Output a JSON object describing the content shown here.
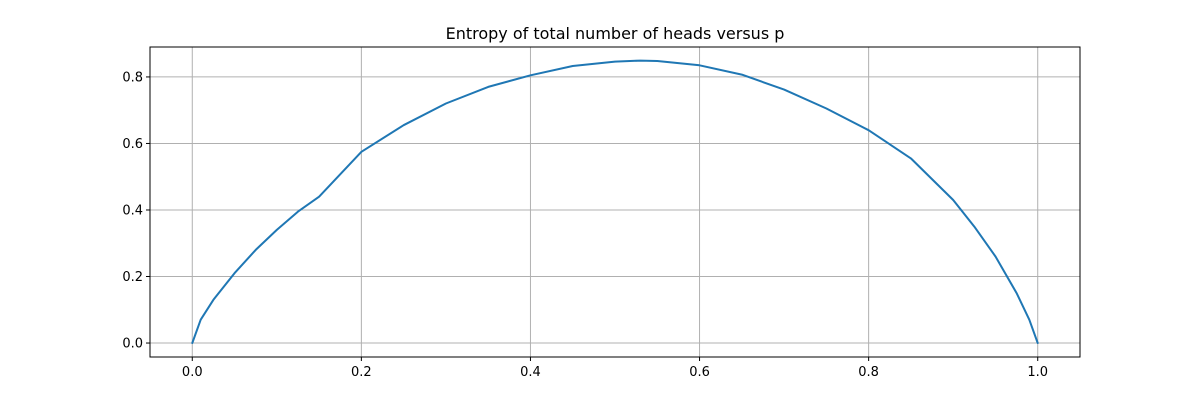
{
  "chart_data": {
    "type": "line",
    "title": "Entropy of total number of heads versus p",
    "xlabel": "",
    "ylabel": "",
    "xlim": [
      -0.05,
      1.05
    ],
    "ylim": [
      -0.042,
      0.89
    ],
    "xticks": [
      0.0,
      0.2,
      0.4,
      0.6,
      0.8,
      1.0
    ],
    "xtick_labels": [
      "0.0",
      "0.2",
      "0.4",
      "0.6",
      "0.8",
      "1.0"
    ],
    "yticks": [
      0.0,
      0.2,
      0.4,
      0.6,
      0.8
    ],
    "ytick_labels": [
      "0.0",
      "0.2",
      "0.4",
      "0.6",
      "0.8"
    ],
    "grid": true,
    "legend": "none",
    "series": [
      {
        "color": "#1f77b4",
        "x": [
          0.0,
          0.01,
          0.025,
          0.05,
          0.075,
          0.1,
          0.125,
          0.15,
          0.2,
          0.25,
          0.3,
          0.35,
          0.4,
          0.45,
          0.5,
          0.53,
          0.55,
          0.6,
          0.65,
          0.7,
          0.75,
          0.8,
          0.85,
          0.9,
          0.925,
          0.95,
          0.975,
          0.99,
          1.0
        ],
        "y": [
          0.0,
          0.07,
          0.13,
          0.21,
          0.28,
          0.34,
          0.395,
          0.44,
          0.575,
          0.655,
          0.72,
          0.77,
          0.805,
          0.833,
          0.846,
          0.849,
          0.848,
          0.835,
          0.807,
          0.762,
          0.705,
          0.64,
          0.555,
          0.43,
          0.35,
          0.26,
          0.15,
          0.07,
          0.0
        ]
      }
    ]
  }
}
